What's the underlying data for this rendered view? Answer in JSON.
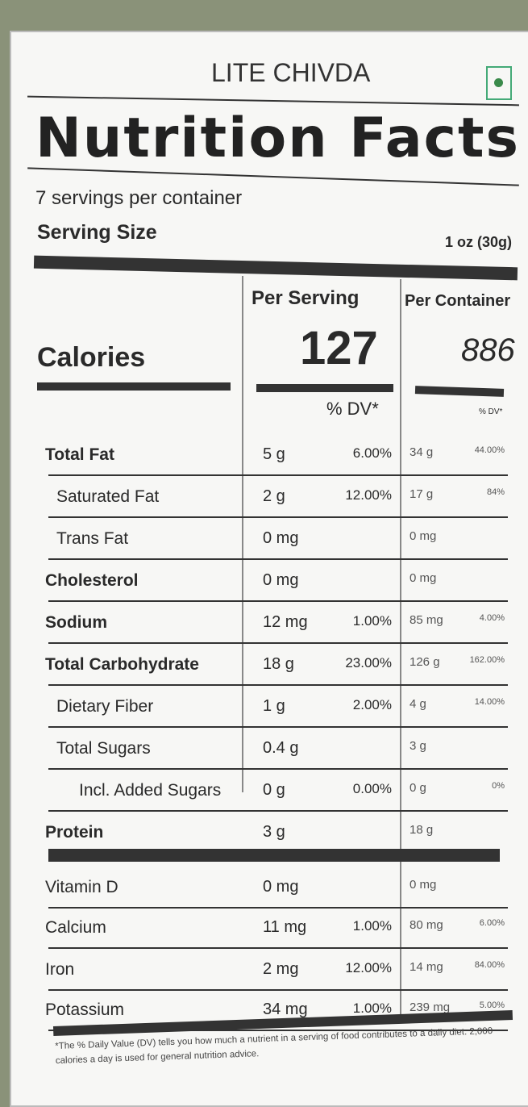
{
  "product_name": "LITE CHIVDA",
  "heading": "Nutrition Facts",
  "servings_per_container": "7 servings per container",
  "serving_size_label": "Serving Size",
  "serving_size_value": "1 oz (30g)",
  "columns": {
    "per_serving": "Per Serving",
    "per_container": "Per Container"
  },
  "calories": {
    "label": "Calories",
    "per_serving": "127",
    "per_container": "886"
  },
  "dv_header": "% DV*",
  "dv_header_container": "% DV*",
  "nutrients": [
    {
      "name": "Total Fat",
      "bold": true,
      "indent": 0,
      "ps": "5 g",
      "pd": "6.00%",
      "cs": "34 g",
      "cd": "44.00%"
    },
    {
      "name": "Saturated Fat",
      "bold": false,
      "indent": 1,
      "ps": "2 g",
      "pd": "12.00%",
      "cs": "17 g",
      "cd": "84%"
    },
    {
      "name": "Trans Fat",
      "bold": false,
      "indent": 1,
      "ps": "0 mg",
      "pd": "",
      "cs": "0 mg",
      "cd": ""
    },
    {
      "name": "Cholesterol",
      "bold": true,
      "indent": 0,
      "ps": "0 mg",
      "pd": "",
      "cs": "0 mg",
      "cd": ""
    },
    {
      "name": "Sodium",
      "bold": true,
      "indent": 0,
      "ps": "12 mg",
      "pd": "1.00%",
      "cs": "85 mg",
      "cd": "4.00%"
    },
    {
      "name": "Total Carbohydrate",
      "bold": true,
      "indent": 0,
      "ps": "18 g",
      "pd": "23.00%",
      "cs": "126 g",
      "cd": "162.00%"
    },
    {
      "name": "Dietary Fiber",
      "bold": false,
      "indent": 1,
      "ps": "1 g",
      "pd": "2.00%",
      "cs": "4 g",
      "cd": "14.00%"
    },
    {
      "name": "Total Sugars",
      "bold": false,
      "indent": 1,
      "ps": "0.4 g",
      "pd": "",
      "cs": "3 g",
      "cd": ""
    },
    {
      "name": "Incl. Added Sugars",
      "bold": false,
      "indent": 2,
      "ps": "0 g",
      "pd": "0.00%",
      "cs": "0 g",
      "cd": "0%"
    },
    {
      "name": "Protein",
      "bold": true,
      "indent": 0,
      "ps": "3 g",
      "pd": "",
      "cs": "18 g",
      "cd": ""
    },
    {
      "name": "Vitamin D",
      "bold": false,
      "indent": 0,
      "ps": "0 mg",
      "pd": "",
      "cs": "0 mg",
      "cd": ""
    },
    {
      "name": "Calcium",
      "bold": false,
      "indent": 0,
      "ps": "11 mg",
      "pd": "1.00%",
      "cs": "80 mg",
      "cd": "6.00%"
    },
    {
      "name": "Iron",
      "bold": false,
      "indent": 0,
      "ps": "2 mg",
      "pd": "12.00%",
      "cs": "14 mg",
      "cd": "84.00%"
    },
    {
      "name": "Potassium",
      "bold": false,
      "indent": 0,
      "ps": "34 mg",
      "pd": "1.00%",
      "cs": "239 mg",
      "cd": "5.00%"
    }
  ],
  "footnote": "*The % Daily Value (DV) tells you how much a nutrient in a serving of food contributes to a daily diet. 2,000 calories a day is used for general nutrition advice.",
  "colors": {
    "ink": "#2a2a2a",
    "background": "#8a9279",
    "veg_mark": "#3a8a4a"
  }
}
